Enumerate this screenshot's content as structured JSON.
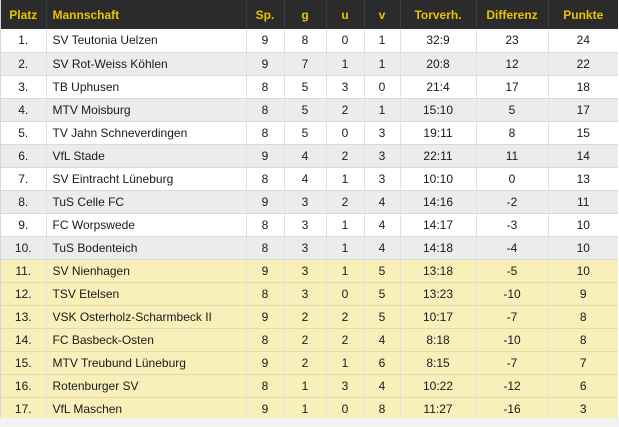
{
  "table": {
    "headers": [
      "Platz",
      "Mannschaft",
      "Sp.",
      "g",
      "u",
      "v",
      "Torverh.",
      "Differenz",
      "Punkte"
    ],
    "rows": [
      {
        "place": "1.",
        "team": "SV Teutonia Uelzen",
        "played": "9",
        "won": "8",
        "drawn": "0",
        "lost": "1",
        "goals": "32:9",
        "diff": "23",
        "points": "24"
      },
      {
        "place": "2.",
        "team": "SV Rot-Weiss Köhlen",
        "played": "9",
        "won": "7",
        "drawn": "1",
        "lost": "1",
        "goals": "20:8",
        "diff": "12",
        "points": "22"
      },
      {
        "place": "3.",
        "team": "TB Uphusen",
        "played": "8",
        "won": "5",
        "drawn": "3",
        "lost": "0",
        "goals": "21:4",
        "diff": "17",
        "points": "18"
      },
      {
        "place": "4.",
        "team": "MTV Moisburg",
        "played": "8",
        "won": "5",
        "drawn": "2",
        "lost": "1",
        "goals": "15:10",
        "diff": "5",
        "points": "17"
      },
      {
        "place": "5.",
        "team": "TV Jahn Schneverdingen",
        "played": "8",
        "won": "5",
        "drawn": "0",
        "lost": "3",
        "goals": "19:11",
        "diff": "8",
        "points": "15"
      },
      {
        "place": "6.",
        "team": "VfL Stade",
        "played": "9",
        "won": "4",
        "drawn": "2",
        "lost": "3",
        "goals": "22:11",
        "diff": "11",
        "points": "14"
      },
      {
        "place": "7.",
        "team": "SV Eintracht Lüneburg",
        "played": "8",
        "won": "4",
        "drawn": "1",
        "lost": "3",
        "goals": "10:10",
        "diff": "0",
        "points": "13"
      },
      {
        "place": "8.",
        "team": "TuS Celle FC",
        "played": "9",
        "won": "3",
        "drawn": "2",
        "lost": "4",
        "goals": "14:16",
        "diff": "-2",
        "points": "11"
      },
      {
        "place": "9.",
        "team": "FC Worpswede",
        "played": "8",
        "won": "3",
        "drawn": "1",
        "lost": "4",
        "goals": "14:17",
        "diff": "-3",
        "points": "10"
      },
      {
        "place": "10.",
        "team": "TuS Bodenteich",
        "played": "8",
        "won": "3",
        "drawn": "1",
        "lost": "4",
        "goals": "14:18",
        "diff": "-4",
        "points": "10"
      },
      {
        "place": "11.",
        "team": "SV Nienhagen",
        "played": "9",
        "won": "3",
        "drawn": "1",
        "lost": "5",
        "goals": "13:18",
        "diff": "-5",
        "points": "10"
      },
      {
        "place": "12.",
        "team": "TSV Etelsen",
        "played": "8",
        "won": "3",
        "drawn": "0",
        "lost": "5",
        "goals": "13:23",
        "diff": "-10",
        "points": "9"
      },
      {
        "place": "13.",
        "team": "VSK Osterholz-Scharmbeck II",
        "played": "9",
        "won": "2",
        "drawn": "2",
        "lost": "5",
        "goals": "10:17",
        "diff": "-7",
        "points": "8"
      },
      {
        "place": "14.",
        "team": "FC Basbeck-Osten",
        "played": "8",
        "won": "2",
        "drawn": "2",
        "lost": "4",
        "goals": "8:18",
        "diff": "-10",
        "points": "8"
      },
      {
        "place": "15.",
        "team": "MTV Treubund Lüneburg",
        "played": "9",
        "won": "2",
        "drawn": "1",
        "lost": "6",
        "goals": "8:15",
        "diff": "-7",
        "points": "7"
      },
      {
        "place": "16.",
        "team": "Rotenburger SV",
        "played": "8",
        "won": "1",
        "drawn": "3",
        "lost": "4",
        "goals": "10:22",
        "diff": "-12",
        "points": "6"
      },
      {
        "place": "17.",
        "team": "VfL Maschen",
        "played": "9",
        "won": "1",
        "drawn": "0",
        "lost": "8",
        "goals": "11:27",
        "diff": "-16",
        "points": "3"
      }
    ]
  },
  "colors": {
    "header_background": "#2b2b2b",
    "header_text": "#e8c400",
    "row_white": "#ffffff",
    "row_grey": "#ececec",
    "relegation_highlight": "#f8efba"
  }
}
